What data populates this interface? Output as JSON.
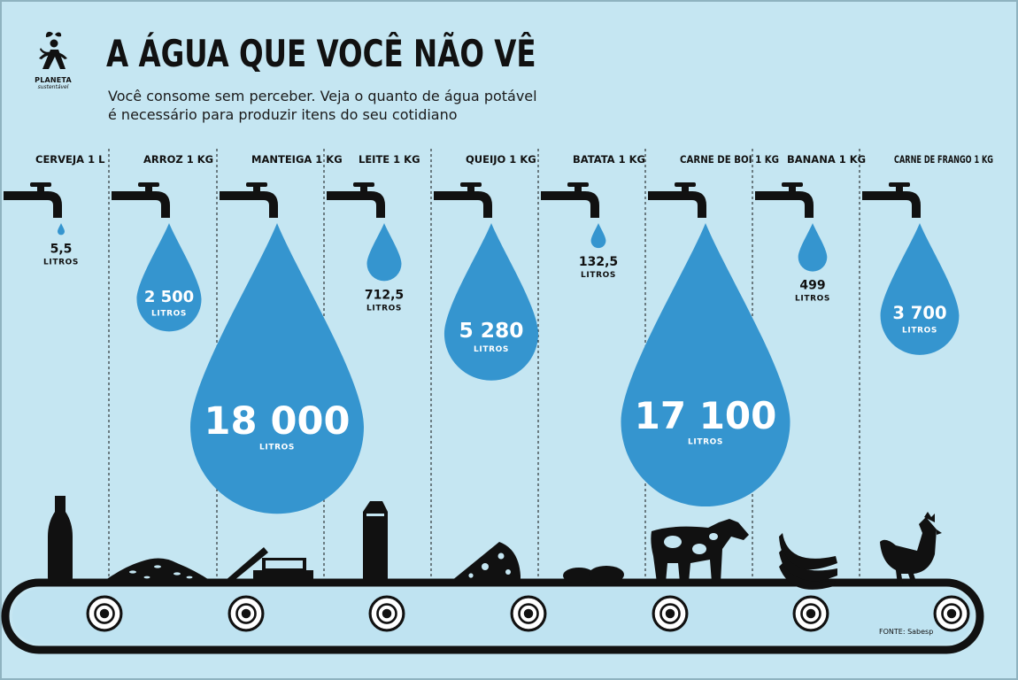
{
  "header": {
    "title": "A ÁGUA QUE VOCÊ NÃO VÊ",
    "subtitle_line1": "Você consome sem perceber. Veja o quanto de água potável",
    "subtitle_line2": "é necessário para produzir itens do seu cotidiano"
  },
  "logo": {
    "brand": "PLANETA",
    "tagline": "sustentável",
    "icon": "person-with-leaf-icon"
  },
  "source": "FONTE: Sabesp",
  "colors": {
    "background": "#c5e6f2",
    "drop": "#3595cf",
    "ink": "#111111",
    "belt": "#bfe3f1"
  },
  "chart_data": {
    "type": "pictogram",
    "unit_label": "LITROS",
    "items": [
      {
        "label": "CERVEJA 1 L",
        "value": 5.5,
        "value_text": "5,5",
        "icon": "beer-bottle-icon"
      },
      {
        "label": "ARROZ 1 KG",
        "value": 2500,
        "value_text": "2 500",
        "icon": "rice-pile-icon"
      },
      {
        "label": "MANTEIGA 1 KG",
        "value": 18000,
        "value_text": "18 000",
        "icon": "butter-dish-icon"
      },
      {
        "label": "LEITE 1 KG",
        "value": 712.5,
        "value_text": "712,5",
        "icon": "milk-carton-icon"
      },
      {
        "label": "QUEIJO 1 KG",
        "value": 5280,
        "value_text": "5 280",
        "icon": "cheese-icon"
      },
      {
        "label": "BATATA 1 KG",
        "value": 132.5,
        "value_text": "132,5",
        "icon": "potatoes-icon"
      },
      {
        "label": "CARNE DE BOI 1 KG",
        "value": 17100,
        "value_text": "17 100",
        "icon": "cow-icon"
      },
      {
        "label": "BANANA 1 KG",
        "value": 499,
        "value_text": "499",
        "icon": "banana-bunch-icon"
      },
      {
        "label": "CARNE DE FRANGO 1 KG",
        "value": 3700,
        "value_text": "3 700",
        "icon": "chicken-icon"
      }
    ]
  }
}
